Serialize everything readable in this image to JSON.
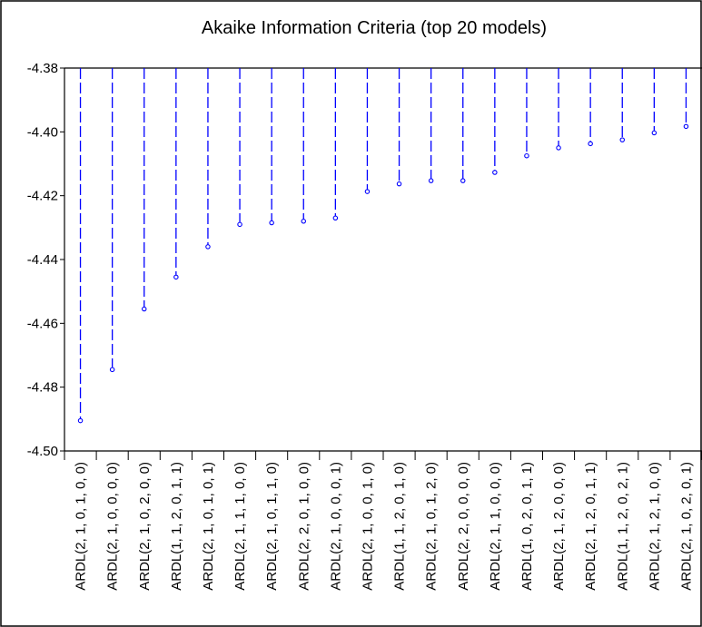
{
  "chart_data": {
    "type": "scatter",
    "title": "Akaike Information Criteria (top 20 models)",
    "xlabel": "",
    "ylabel": "",
    "ylim": [
      -4.5,
      -4.38
    ],
    "yticks": [
      "-4.38",
      "-4.40",
      "-4.42",
      "-4.44",
      "-4.46",
      "-4.48",
      "-4.50"
    ],
    "ytick_values": [
      -4.38,
      -4.4,
      -4.42,
      -4.44,
      -4.46,
      -4.48,
      -4.5
    ],
    "categories": [
      "ARDL(2, 1, 0, 1, 0, 0)",
      "ARDL(2, 1, 0, 0, 0, 0)",
      "ARDL(2, 1, 0, 2, 0, 0)",
      "ARDL(1, 1, 2, 0, 1, 1)",
      "ARDL(2, 1, 0, 1, 0, 1)",
      "ARDL(2, 1, 1, 1, 0, 0)",
      "ARDL(2, 1, 0, 1, 1, 0)",
      "ARDL(2, 2, 0, 1, 0, 0)",
      "ARDL(2, 1, 0, 0, 0, 1)",
      "ARDL(2, 1, 0, 0, 1, 0)",
      "ARDL(1, 1, 2, 0, 1, 0)",
      "ARDL(2, 1, 0, 1, 2, 0)",
      "ARDL(2, 2, 0, 0, 0, 0)",
      "ARDL(2, 1, 1, 0, 0, 0)",
      "ARDL(1, 0, 2, 0, 1, 1)",
      "ARDL(2, 1, 2, 0, 0, 0)",
      "ARDL(2, 1, 2, 0, 1, 1)",
      "ARDL(1, 1, 2, 0, 2, 1)",
      "ARDL(2, 1, 2, 1, 0, 0)",
      "ARDL(2, 1, 0, 2, 0, 1)"
    ],
    "values": [
      -4.4905,
      -4.4745,
      -4.4555,
      -4.4455,
      -4.436,
      -4.429,
      -4.4285,
      -4.428,
      -4.427,
      -4.4187,
      -4.4163,
      -4.4153,
      -4.4153,
      -4.4127,
      -4.4075,
      -4.405,
      -4.4037,
      -4.4025,
      -4.4003,
      -4.3983
    ],
    "style": {
      "stem_color": "#0000ff",
      "marker_color": "#0000ff",
      "stem_style": "dashed",
      "marker": "open-circle"
    },
    "grid": false,
    "legend": "none"
  }
}
